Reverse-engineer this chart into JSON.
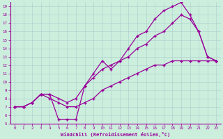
{
  "xlabel": "Windchill (Refroidissement éolien,°C)",
  "bg_color": "#cceedd",
  "line_color": "#990099",
  "marker": "+",
  "xlim": [
    -0.5,
    23.5
  ],
  "ylim": [
    5,
    19.5
  ],
  "xticks": [
    0,
    1,
    2,
    3,
    4,
    5,
    6,
    7,
    8,
    9,
    10,
    11,
    12,
    13,
    14,
    15,
    16,
    17,
    18,
    19,
    20,
    21,
    22,
    23
  ],
  "yticks": [
    5,
    6,
    7,
    8,
    9,
    10,
    11,
    12,
    13,
    14,
    15,
    16,
    17,
    18,
    19
  ],
  "series1_x": [
    0,
    1,
    2,
    3,
    4,
    5,
    6,
    7,
    8,
    9,
    10,
    11,
    12,
    13,
    14,
    15,
    16,
    17,
    18,
    19,
    20,
    21,
    22,
    23
  ],
  "series1_y": [
    7,
    7,
    7.5,
    8.5,
    8.5,
    5.5,
    5.5,
    5.5,
    9.5,
    11,
    12.5,
    11.5,
    12.5,
    14,
    15.5,
    16,
    17.5,
    18.5,
    19,
    19.5,
    18,
    16,
    13,
    12.5
  ],
  "series2_x": [
    0,
    1,
    2,
    3,
    4,
    5,
    6,
    7,
    8,
    9,
    10,
    11,
    12,
    13,
    14,
    15,
    16,
    17,
    18,
    19,
    20,
    21,
    22,
    23
  ],
  "series2_y": [
    7,
    7,
    7.5,
    8.5,
    8.5,
    8,
    7.5,
    8,
    9.5,
    10.5,
    11.5,
    12,
    12.5,
    13,
    14,
    14.5,
    15.5,
    16,
    17,
    18,
    17.5,
    16,
    13,
    12.5
  ],
  "series3_x": [
    0,
    1,
    2,
    3,
    4,
    5,
    6,
    7,
    8,
    9,
    10,
    11,
    12,
    13,
    14,
    15,
    16,
    17,
    18,
    19,
    20,
    21,
    22,
    23
  ],
  "series3_y": [
    7,
    7,
    7.5,
    8.5,
    8,
    7.5,
    7,
    7,
    7.5,
    8,
    9,
    9.5,
    10,
    10.5,
    11,
    11.5,
    12,
    12,
    12.5,
    12.5,
    12.5,
    12.5,
    12.5,
    12.5
  ]
}
